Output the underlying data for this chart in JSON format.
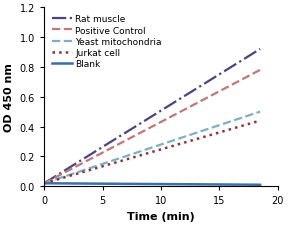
{
  "title": "",
  "xlabel": "Time (min)",
  "ylabel": "OD 450 nm",
  "xlim": [
    0,
    20
  ],
  "ylim": [
    0,
    1.2
  ],
  "xticks": [
    0,
    5,
    10,
    15,
    20
  ],
  "yticks": [
    0,
    0.2,
    0.4,
    0.6,
    0.8,
    1.0,
    1.2
  ],
  "lines": [
    {
      "label": "Rat muscle",
      "color": "#4a4580",
      "linestyle": "-.",
      "linewidth": 1.6,
      "x_end": 18.5,
      "y_end": 0.92
    },
    {
      "label": "Positive Control",
      "color": "#c07878",
      "linestyle": "--",
      "linewidth": 1.6,
      "x_end": 18.5,
      "y_end": 0.78
    },
    {
      "label": "Yeast mitochondria",
      "color": "#7daec8",
      "linestyle": "--",
      "linewidth": 1.6,
      "x_end": 18.5,
      "y_end": 0.5
    },
    {
      "label": "Jurkat cell",
      "color": "#8b3535",
      "linestyle": ":",
      "linewidth": 1.8,
      "x_end": 18.5,
      "y_end": 0.44
    },
    {
      "label": "Blank",
      "color": "#3a6fa8",
      "linestyle": "-",
      "linewidth": 1.8,
      "x_end": 18.5,
      "y_end": 0.01
    }
  ],
  "legend_fontsize": 6.5,
  "axis_fontsize": 8,
  "tick_fontsize": 7,
  "background_color": "#ffffff",
  "figure_bg": "#ffffff"
}
